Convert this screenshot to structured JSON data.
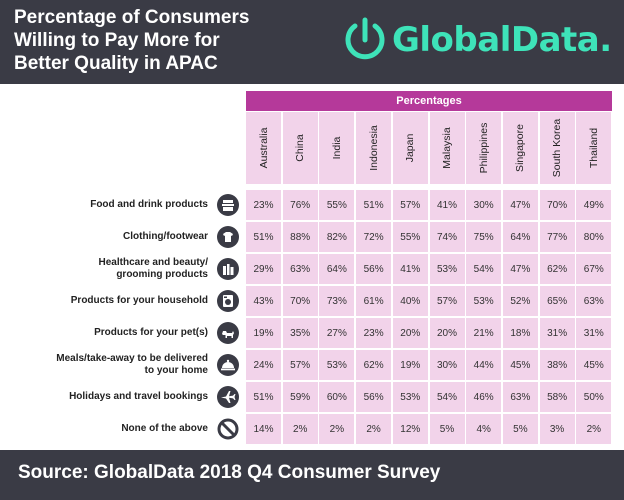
{
  "header": {
    "title_lines": [
      "Percentage of Consumers",
      "Willing to Pay More for",
      "Better Quality in APAC"
    ],
    "logo_text": "GlobalData."
  },
  "footer": {
    "source": "Source: GlobalData 2018 Q4 Consumer Survey"
  },
  "colors": {
    "header_bg": "#3a3b45",
    "band": "#b5399a",
    "cell": "#f2d3ea",
    "logo": "#3ee3b9"
  },
  "chart_data": {
    "type": "table",
    "title": "Percentage of Consumers Willing to Pay More for Better Quality in APAC",
    "column_group_label": "Percentages",
    "columns": [
      "Australia",
      "China",
      "India",
      "Indonesia",
      "Japan",
      "Malaysia",
      "Philippines",
      "Singapore",
      "South Korea",
      "Thailand"
    ],
    "rows": [
      {
        "label_lines": [
          "Food and drink products"
        ],
        "icon": "food-tray-icon",
        "values": [
          "23%",
          "76%",
          "55%",
          "51%",
          "57%",
          "41%",
          "30%",
          "47%",
          "70%",
          "49%"
        ]
      },
      {
        "label_lines": [
          "Clothing/footwear"
        ],
        "icon": "tshirt-icon",
        "values": [
          "51%",
          "88%",
          "82%",
          "72%",
          "55%",
          "74%",
          "75%",
          "64%",
          "77%",
          "80%"
        ]
      },
      {
        "label_lines": [
          "Healthcare and beauty/",
          "grooming products"
        ],
        "icon": "grooming-products-icon",
        "values": [
          "29%",
          "63%",
          "64%",
          "56%",
          "41%",
          "53%",
          "54%",
          "47%",
          "62%",
          "67%"
        ]
      },
      {
        "label_lines": [
          "Products for your household"
        ],
        "icon": "washing-machine-icon",
        "values": [
          "43%",
          "70%",
          "73%",
          "61%",
          "40%",
          "57%",
          "53%",
          "52%",
          "65%",
          "63%"
        ]
      },
      {
        "label_lines": [
          "Products for your pet(s)"
        ],
        "icon": "dog-icon",
        "values": [
          "19%",
          "35%",
          "27%",
          "23%",
          "20%",
          "20%",
          "21%",
          "18%",
          "31%",
          "31%"
        ]
      },
      {
        "label_lines": [
          "Meals/take-away to be delivered",
          "to your home"
        ],
        "icon": "food-cloche-icon",
        "values": [
          "24%",
          "57%",
          "53%",
          "62%",
          "19%",
          "30%",
          "44%",
          "45%",
          "38%",
          "45%"
        ]
      },
      {
        "label_lines": [
          "Holidays and travel bookings"
        ],
        "icon": "airplane-icon",
        "values": [
          "51%",
          "59%",
          "60%",
          "56%",
          "53%",
          "54%",
          "46%",
          "63%",
          "58%",
          "50%"
        ]
      },
      {
        "label_lines": [
          "None of the above"
        ],
        "icon": "prohibited-icon",
        "values": [
          "14%",
          "2%",
          "2%",
          "2%",
          "12%",
          "5%",
          "4%",
          "5%",
          "3%",
          "2%"
        ]
      }
    ]
  }
}
